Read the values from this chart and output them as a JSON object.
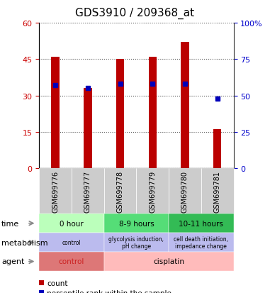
{
  "title": "GDS3910 / 209368_at",
  "samples": [
    "GSM699776",
    "GSM699777",
    "GSM699778",
    "GSM699779",
    "GSM699780",
    "GSM699781"
  ],
  "counts": [
    46,
    33,
    45,
    46,
    52,
    16
  ],
  "percentile_ranks": [
    57,
    55,
    58,
    58,
    58,
    48
  ],
  "ylim_left": [
    0,
    60
  ],
  "ylim_right": [
    0,
    100
  ],
  "yticks_left": [
    0,
    15,
    30,
    45,
    60
  ],
  "yticks_right": [
    0,
    25,
    50,
    75,
    100
  ],
  "bar_color": "#bb0000",
  "dot_color": "#0000bb",
  "bar_width": 0.25,
  "time_groups": [
    {
      "start": 0,
      "end": 1,
      "label": "0 hour",
      "color": "#bbffbb"
    },
    {
      "start": 2,
      "end": 3,
      "label": "8-9 hours",
      "color": "#55dd77"
    },
    {
      "start": 4,
      "end": 5,
      "label": "10-11 hours",
      "color": "#33bb55"
    }
  ],
  "met_groups": [
    {
      "start": 0,
      "end": 1,
      "label": "control",
      "color": "#bbbbee"
    },
    {
      "start": 2,
      "end": 3,
      "label": "glycolysis induction,\npH change",
      "color": "#bbbbee"
    },
    {
      "start": 4,
      "end": 5,
      "label": "cell death initiation,\nimpedance change",
      "color": "#bbbbee"
    }
  ],
  "agent_groups": [
    {
      "start": 0,
      "end": 1,
      "label": "control",
      "color": "#dd7777"
    },
    {
      "start": 2,
      "end": 5,
      "label": "cisplatin",
      "color": "#ffbbbb"
    }
  ],
  "agent_label_colors": [
    "#cc2222",
    "#000000"
  ],
  "sample_box_color": "#cccccc",
  "row_labels": [
    "time",
    "metabolism",
    "agent"
  ],
  "arrow_color": "#888888",
  "tick_color_left": "#cc0000",
  "tick_color_right": "#0000cc",
  "grid_linestyle": "dotted",
  "grid_color": "#555555",
  "title_fontsize": 11,
  "tick_fontsize": 8,
  "ann_fontsize": 7.5,
  "sample_fontsize": 7,
  "legend_fontsize": 7.5,
  "row_label_fontsize": 8
}
